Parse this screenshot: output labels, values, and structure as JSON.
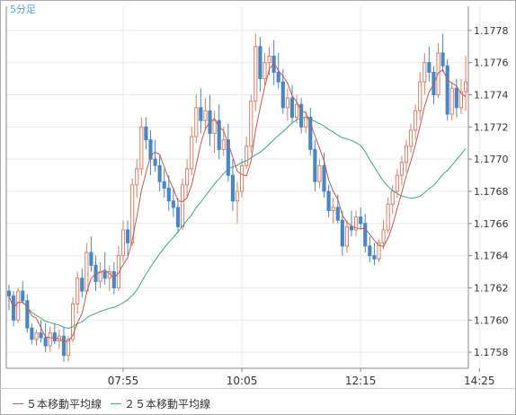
{
  "timeframe_label": "5分足",
  "colors": {
    "up": "#d4816a",
    "down": "#4a86c2",
    "ma5": "#c45a52",
    "ma25": "#3aa48a",
    "grid": "#e8e8e8",
    "axis": "#888888",
    "text": "#333333",
    "timeframe": "#4aa8d8"
  },
  "chart_data": {
    "type": "candlestick",
    "title": "5分足",
    "ylim": [
      1.1757,
      1.17795
    ],
    "y_ticks": [
      "1.1758",
      "1.1760",
      "1.1762",
      "1.1764",
      "1.1766",
      "1.1768",
      "1.1770",
      "1.1772",
      "1.1774",
      "1.1776",
      "1.1778"
    ],
    "x_ticks": [
      {
        "index": 25,
        "label": "07:55"
      },
      {
        "index": 51,
        "label": "10:05"
      },
      {
        "index": 77,
        "label": "12:15"
      },
      {
        "index": 103,
        "label": "14:25"
      }
    ],
    "candles": [
      [
        1.17618,
        1.17622,
        1.17606,
        1.17615
      ],
      [
        1.17615,
        1.17618,
        1.17596,
        1.176
      ],
      [
        1.176,
        1.1762,
        1.17598,
        1.17618
      ],
      [
        1.17618,
        1.17624,
        1.1761,
        1.17612
      ],
      [
        1.17612,
        1.17616,
        1.17592,
        1.17595
      ],
      [
        1.17595,
        1.17598,
        1.17585,
        1.17588
      ],
      [
        1.17588,
        1.17594,
        1.17584,
        1.17592
      ],
      [
        1.17592,
        1.176,
        1.17586,
        1.17589
      ],
      [
        1.17589,
        1.17598,
        1.1758,
        1.17584
      ],
      [
        1.17584,
        1.17596,
        1.1758,
        1.17592
      ],
      [
        1.17592,
        1.17598,
        1.17585,
        1.17587
      ],
      [
        1.17587,
        1.17594,
        1.17582,
        1.1759
      ],
      [
        1.1759,
        1.17596,
        1.17574,
        1.17578
      ],
      [
        1.17578,
        1.1759,
        1.17574,
        1.17588
      ],
      [
        1.17588,
        1.17614,
        1.17586,
        1.1761
      ],
      [
        1.1761,
        1.1763,
        1.17604,
        1.17626
      ],
      [
        1.17626,
        1.17632,
        1.17614,
        1.17618
      ],
      [
        1.17618,
        1.17648,
        1.17616,
        1.17642
      ],
      [
        1.17642,
        1.17652,
        1.1763,
        1.17634
      ],
      [
        1.17634,
        1.1764,
        1.17618,
        1.17624
      ],
      [
        1.17624,
        1.17636,
        1.1762,
        1.1763
      ],
      [
        1.1763,
        1.17642,
        1.17622,
        1.17626
      ],
      [
        1.17626,
        1.17634,
        1.17618,
        1.1763
      ],
      [
        1.1763,
        1.17636,
        1.17616,
        1.1762
      ],
      [
        1.1762,
        1.17646,
        1.17618,
        1.1764
      ],
      [
        1.1764,
        1.17662,
        1.17636,
        1.17656
      ],
      [
        1.17656,
        1.17662,
        1.1764,
        1.17648
      ],
      [
        1.17648,
        1.17688,
        1.17646,
        1.17684
      ],
      [
        1.17684,
        1.177,
        1.17676,
        1.17694
      ],
      [
        1.17694,
        1.17726,
        1.1769,
        1.1772
      ],
      [
        1.1772,
        1.17726,
        1.17706,
        1.17712
      ],
      [
        1.17712,
        1.17718,
        1.1769,
        1.177
      ],
      [
        1.177,
        1.17712,
        1.17692,
        1.17696
      ],
      [
        1.17696,
        1.17702,
        1.1768,
        1.17686
      ],
      [
        1.17686,
        1.17694,
        1.17676,
        1.17682
      ],
      [
        1.17682,
        1.1769,
        1.17668,
        1.17674
      ],
      [
        1.17674,
        1.17682,
        1.17664,
        1.1767
      ],
      [
        1.1767,
        1.17676,
        1.17654,
        1.17658
      ],
      [
        1.17658,
        1.17688,
        1.17656,
        1.17684
      ],
      [
        1.17684,
        1.177,
        1.17676,
        1.17694
      ],
      [
        1.17694,
        1.1772,
        1.1769,
        1.17714
      ],
      [
        1.17714,
        1.1774,
        1.1771,
        1.17732
      ],
      [
        1.17732,
        1.17744,
        1.17716,
        1.17724
      ],
      [
        1.17724,
        1.17738,
        1.17718,
        1.1773
      ],
      [
        1.1773,
        1.1774,
        1.17708,
        1.17716
      ],
      [
        1.17716,
        1.1773,
        1.17704,
        1.17724
      ],
      [
        1.17724,
        1.17734,
        1.177,
        1.17706
      ],
      [
        1.17706,
        1.1772,
        1.17702,
        1.17712
      ],
      [
        1.17712,
        1.17722,
        1.17686,
        1.1769
      ],
      [
        1.1769,
        1.177,
        1.17668,
        1.17674
      ],
      [
        1.17674,
        1.17686,
        1.1766,
        1.1768
      ],
      [
        1.1768,
        1.177,
        1.17676,
        1.17696
      ],
      [
        1.17696,
        1.17714,
        1.17694,
        1.17708
      ],
      [
        1.17708,
        1.1774,
        1.17704,
        1.17736
      ],
      [
        1.17736,
        1.17778,
        1.1773,
        1.1777
      ],
      [
        1.1777,
        1.17776,
        1.17742,
        1.1775
      ],
      [
        1.1775,
        1.17766,
        1.17746,
        1.1776
      ],
      [
        1.1776,
        1.1777,
        1.17752,
        1.17764
      ],
      [
        1.17764,
        1.17774,
        1.17746,
        1.17754
      ],
      [
        1.17754,
        1.17766,
        1.17744,
        1.17748
      ],
      [
        1.17748,
        1.17756,
        1.17728,
        1.17732
      ],
      [
        1.17732,
        1.17744,
        1.17724,
        1.17738
      ],
      [
        1.17738,
        1.17746,
        1.17722,
        1.17726
      ],
      [
        1.17726,
        1.1774,
        1.17722,
        1.17734
      ],
      [
        1.17734,
        1.17738,
        1.17716,
        1.1772
      ],
      [
        1.1772,
        1.1773,
        1.17716,
        1.17726
      ],
      [
        1.17726,
        1.17732,
        1.17702,
        1.17706
      ],
      [
        1.17706,
        1.17712,
        1.1768,
        1.17686
      ],
      [
        1.17686,
        1.177,
        1.17682,
        1.17696
      ],
      [
        1.17696,
        1.17704,
        1.17676,
        1.1768
      ],
      [
        1.1768,
        1.17684,
        1.17664,
        1.17668
      ],
      [
        1.17668,
        1.17676,
        1.1766,
        1.1767
      ],
      [
        1.1767,
        1.17678,
        1.1766,
        1.17662
      ],
      [
        1.17662,
        1.17668,
        1.1764,
        1.17646
      ],
      [
        1.17646,
        1.17662,
        1.17642,
        1.17658
      ],
      [
        1.17658,
        1.17668,
        1.17652,
        1.17656
      ],
      [
        1.17656,
        1.17668,
        1.17652,
        1.17664
      ],
      [
        1.17664,
        1.1767,
        1.17656,
        1.1766
      ],
      [
        1.1766,
        1.17666,
        1.17642,
        1.17646
      ],
      [
        1.17646,
        1.17652,
        1.17636,
        1.1764
      ],
      [
        1.1764,
        1.17648,
        1.17634,
        1.17638
      ],
      [
        1.17638,
        1.1765,
        1.17636,
        1.17648
      ],
      [
        1.17648,
        1.17662,
        1.17644,
        1.17656
      ],
      [
        1.17656,
        1.17676,
        1.17654,
        1.17672
      ],
      [
        1.17672,
        1.17684,
        1.17666,
        1.1768
      ],
      [
        1.1768,
        1.17694,
        1.17676,
        1.1769
      ],
      [
        1.1769,
        1.17702,
        1.17684,
        1.17698
      ],
      [
        1.17698,
        1.17712,
        1.17692,
        1.17708
      ],
      [
        1.17708,
        1.17722,
        1.17704,
        1.17718
      ],
      [
        1.17718,
        1.17734,
        1.17712,
        1.1773
      ],
      [
        1.1773,
        1.17754,
        1.17724,
        1.17748
      ],
      [
        1.17748,
        1.17766,
        1.1774,
        1.1776
      ],
      [
        1.1776,
        1.1777,
        1.17748,
        1.17754
      ],
      [
        1.17754,
        1.17758,
        1.17734,
        1.1774
      ],
      [
        1.1774,
        1.17772,
        1.17738,
        1.17766
      ],
      [
        1.17766,
        1.17778,
        1.17754,
        1.17758
      ],
      [
        1.17758,
        1.17762,
        1.17724,
        1.17728
      ],
      [
        1.17728,
        1.17748,
        1.17724,
        1.17744
      ],
      [
        1.17744,
        1.1775,
        1.17726,
        1.17732
      ],
      [
        1.17732,
        1.1775,
        1.17728,
        1.17742
      ],
      [
        1.17742,
        1.17764,
        1.1773,
        1.17748
      ]
    ],
    "series": [
      {
        "name": "５本移動平均線",
        "values": "ma5"
      },
      {
        "name": "２５本移動平均線",
        "values": "ma25"
      }
    ]
  },
  "legend": {
    "ma5_label": "５本移動平均線",
    "ma25_label": "２５本移動平均線"
  }
}
